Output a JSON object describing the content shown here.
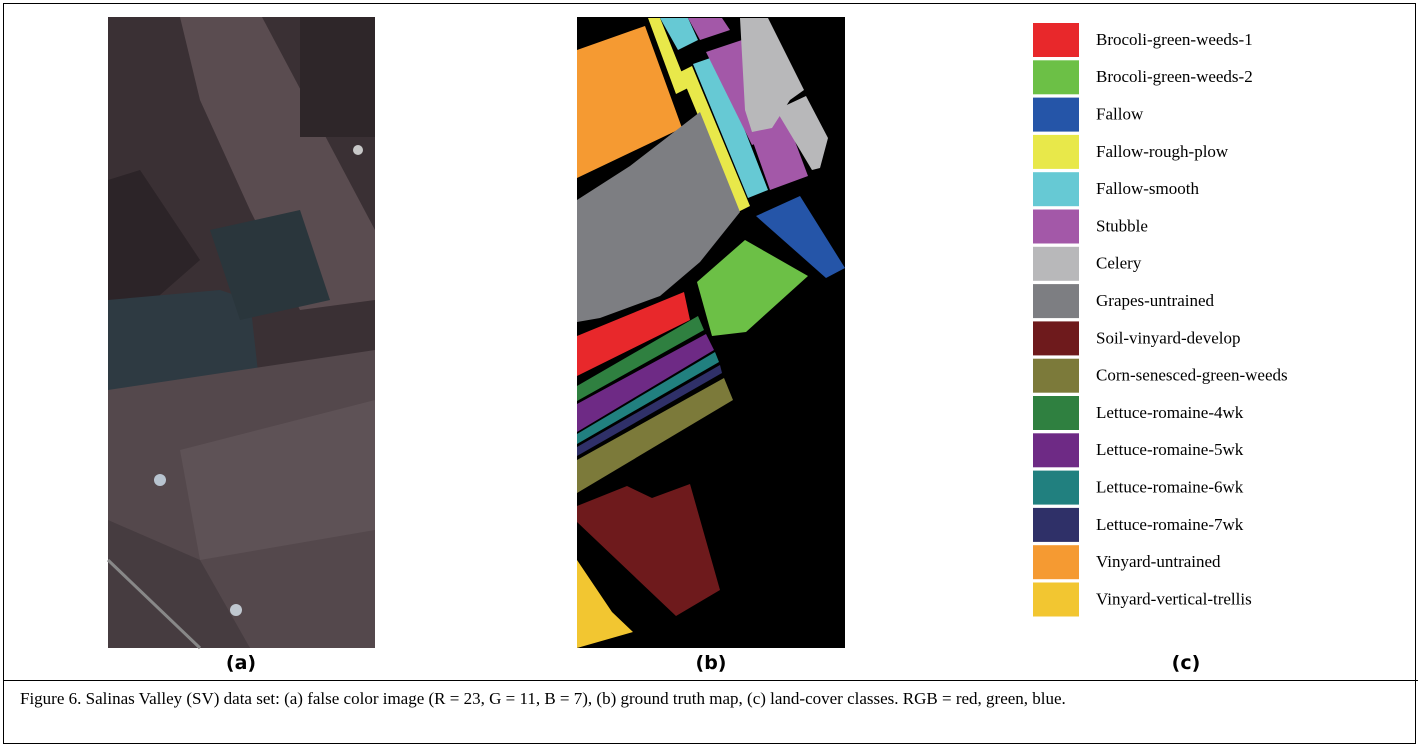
{
  "panels": [
    {
      "label": "(a)"
    },
    {
      "label": "(b)"
    },
    {
      "label": "(c)"
    }
  ],
  "legend": {
    "classes": [
      {
        "name": "Brocoli-green-weeds-1",
        "color": "#e8282b"
      },
      {
        "name": "Brocoli-green-weeds-2",
        "color": "#6cc046"
      },
      {
        "name": "Fallow",
        "color": "#2555a8"
      },
      {
        "name": "Fallow-rough-plow",
        "color": "#e8e84a"
      },
      {
        "name": "Fallow-smooth",
        "color": "#66c9d4"
      },
      {
        "name": "Stubble",
        "color": "#a358a8"
      },
      {
        "name": "Celery",
        "color": "#b8b8ba"
      },
      {
        "name": "Grapes-untrained",
        "color": "#7d7e82"
      },
      {
        "name": "Soil-vinyard-develop",
        "color": "#6e1a1c"
      },
      {
        "name": "Corn-senesced-green-weeds",
        "color": "#7c7a3a"
      },
      {
        "name": "Lettuce-romaine-4wk",
        "color": "#2f8040"
      },
      {
        "name": "Lettuce-romaine-5wk",
        "color": "#6e2a85"
      },
      {
        "name": "Lettuce-romaine-6wk",
        "color": "#21807f"
      },
      {
        "name": "Lettuce-romaine-7wk",
        "color": "#2f3068"
      },
      {
        "name": "Vinyard-untrained",
        "color": "#f59a32"
      },
      {
        "name": "Vinyard-vertical-trellis",
        "color": "#f2c631"
      }
    ]
  },
  "caption": "Figure 6. Salinas Valley (SV) data set: (a) false color image (R = 23, G = 11, B = 7), (b) ground truth map, (c) land-cover classes. RGB = red, green, blue."
}
